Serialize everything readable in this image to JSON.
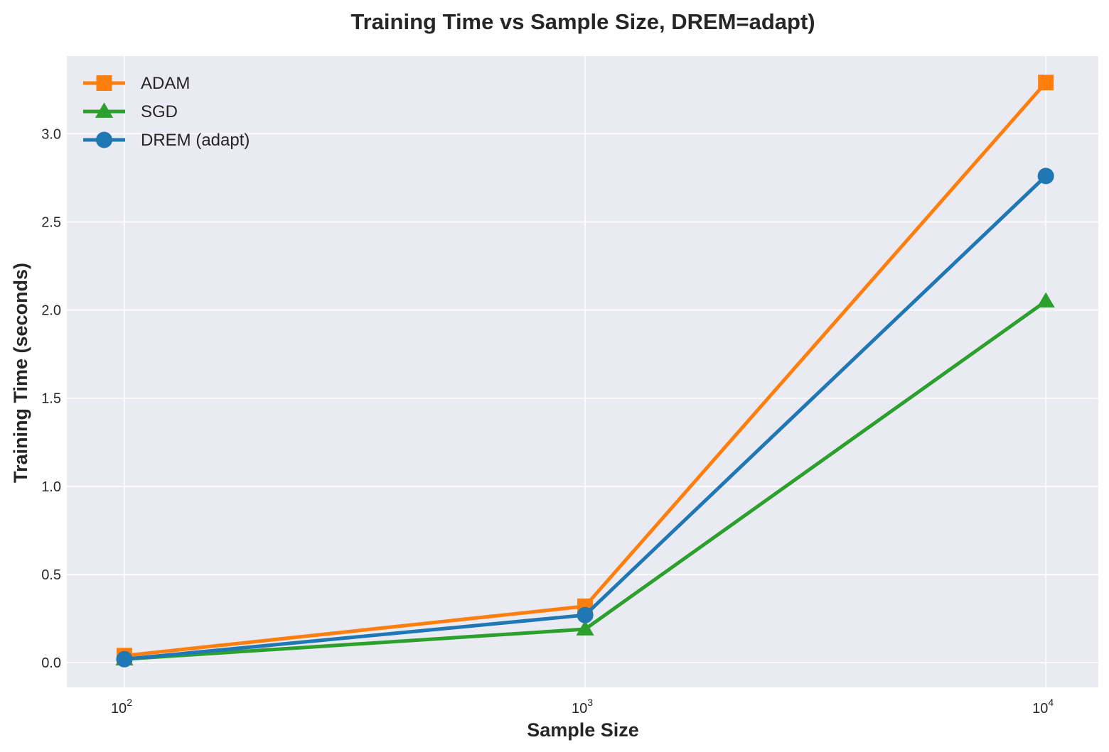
{
  "chart_data": {
    "type": "line",
    "title": "Training Time vs Sample Size, DREM=adapt)",
    "xlabel": "Sample Size",
    "ylabel": "Training Time (seconds)",
    "x_scale": "log",
    "x": [
      100,
      1000,
      10000
    ],
    "x_tick_labels": [
      {
        "base": "10",
        "exp": "2"
      },
      {
        "base": "10",
        "exp": "3"
      },
      {
        "base": "10",
        "exp": "4"
      }
    ],
    "xlim": [
      75,
      13000
    ],
    "ylim": [
      -0.14,
      3.44
    ],
    "y_ticks": [
      "0.0",
      "0.5",
      "1.0",
      "1.5",
      "2.0",
      "2.5",
      "3.0"
    ],
    "grid": true,
    "legend_position": "upper-left",
    "series": [
      {
        "name": "ADAM",
        "values": [
          0.04,
          0.32,
          3.29
        ],
        "color": "#ff7f0e",
        "marker": "square"
      },
      {
        "name": "SGD",
        "values": [
          0.02,
          0.19,
          2.05
        ],
        "color": "#2ca02c",
        "marker": "triangle"
      },
      {
        "name": "DREM (adapt)",
        "values": [
          0.02,
          0.27,
          2.76
        ],
        "color": "#1f77b4",
        "marker": "circle"
      }
    ],
    "background_color": "#eaeaf2",
    "grid_color": "#ffffff"
  }
}
